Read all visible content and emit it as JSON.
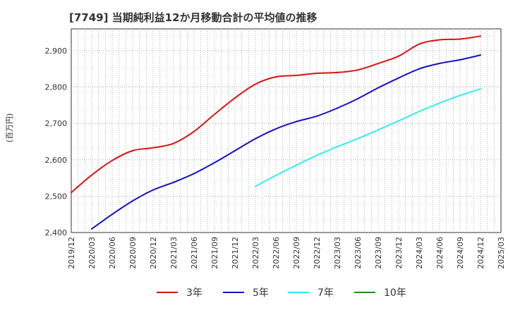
{
  "chart_data": {
    "type": "line",
    "title": "[7749]  当期純利益12か月移動合計の平均値の推移",
    "ylabel": "(百万円)",
    "xlabel": "",
    "ylim": [
      2400,
      2960
    ],
    "yticks": [
      2400,
      2500,
      2600,
      2700,
      2800,
      2900
    ],
    "ytick_labels": [
      "2,400",
      "2,500",
      "2,600",
      "2,700",
      "2,800",
      "2,900"
    ],
    "x_tick_labels": [
      "2019/12",
      "2020/03",
      "2020/06",
      "2020/09",
      "2020/12",
      "2021/03",
      "2021/06",
      "2021/09",
      "2021/12",
      "2022/03",
      "2022/06",
      "2022/09",
      "2022/12",
      "2023/03",
      "2023/06",
      "2023/09",
      "2023/12",
      "2024/03",
      "2024/06",
      "2024/09",
      "2024/12",
      "2025/03"
    ],
    "grid": true,
    "legend_position": "bottom",
    "series": [
      {
        "name": "3年",
        "color": "#dd1111",
        "x": [
          "2019/12",
          "2020/03",
          "2020/06",
          "2020/09",
          "2020/12",
          "2021/03",
          "2021/06",
          "2021/09",
          "2021/12",
          "2022/03",
          "2022/06",
          "2022/09",
          "2022/12",
          "2023/03",
          "2023/06",
          "2023/09",
          "2023/12",
          "2024/03",
          "2024/06",
          "2024/09",
          "2024/12"
        ],
        "values": [
          2510,
          2558,
          2598,
          2625,
          2633,
          2645,
          2678,
          2725,
          2770,
          2808,
          2828,
          2832,
          2838,
          2840,
          2847,
          2865,
          2885,
          2918,
          2930,
          2932,
          2940
        ]
      },
      {
        "name": "5年",
        "color": "#1111cc",
        "x": [
          "2020/03",
          "2020/06",
          "2020/09",
          "2020/12",
          "2021/03",
          "2021/06",
          "2021/09",
          "2021/12",
          "2022/03",
          "2022/06",
          "2022/09",
          "2022/12",
          "2023/03",
          "2023/06",
          "2023/09",
          "2023/12",
          "2024/03",
          "2024/06",
          "2024/09",
          "2024/12"
        ],
        "values": [
          2410,
          2450,
          2487,
          2517,
          2538,
          2562,
          2592,
          2625,
          2658,
          2685,
          2705,
          2720,
          2742,
          2768,
          2798,
          2825,
          2850,
          2865,
          2875,
          2888
        ]
      },
      {
        "name": "7年",
        "color": "#33eeee",
        "x": [
          "2022/03",
          "2022/06",
          "2022/09",
          "2022/12",
          "2023/03",
          "2023/06",
          "2023/09",
          "2023/12",
          "2024/03",
          "2024/06",
          "2024/09",
          "2024/12"
        ],
        "values": [
          2527,
          2557,
          2585,
          2612,
          2636,
          2658,
          2682,
          2707,
          2733,
          2756,
          2777,
          2795
        ]
      },
      {
        "name": "10年",
        "color": "#228822",
        "x": [],
        "values": []
      }
    ]
  }
}
